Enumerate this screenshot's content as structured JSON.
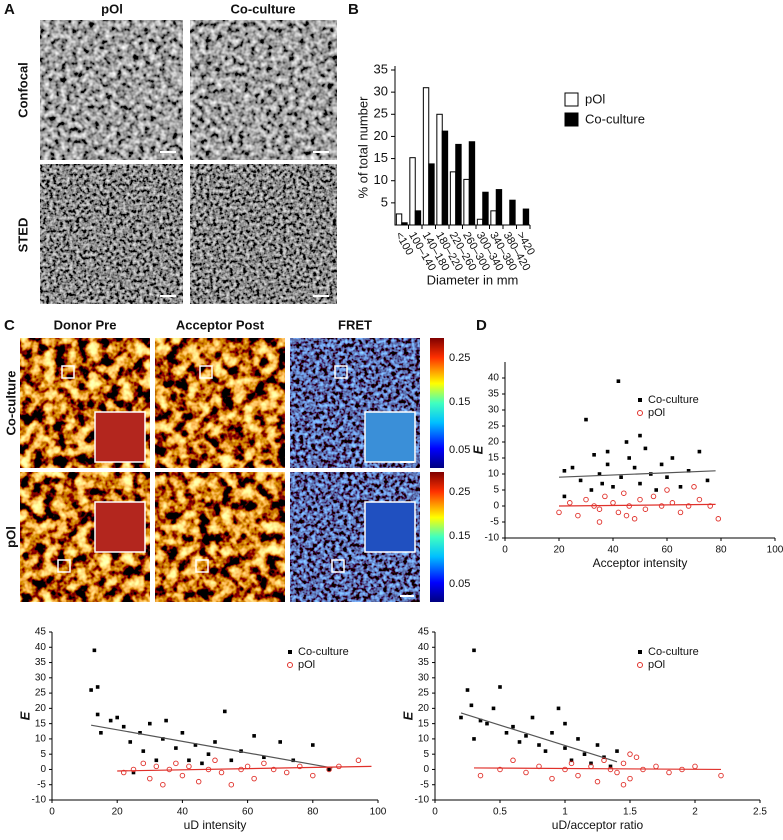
{
  "figure": {
    "panel_labels": [
      "A",
      "B",
      "C",
      "D"
    ],
    "panel_a": {
      "columns": [
        "pOl",
        "Co-culture"
      ],
      "rows": [
        "Confocal",
        "STED"
      ]
    },
    "panel_c": {
      "columns": [
        "Donor Pre",
        "Acceptor Post",
        "FRET"
      ],
      "rows": [
        "Co-culture",
        "pOl"
      ],
      "colorbar_ticks": [
        0.25,
        0.15,
        0.05
      ]
    }
  },
  "chart_data": [
    {
      "type": "bar",
      "x_label": "Diameter in mm",
      "y_label": "% of total number",
      "categories": [
        "<100",
        "100–140",
        "140–180",
        "180–220",
        "220–260",
        "260–300",
        "300–340",
        "340–380",
        "380–420",
        ">420"
      ],
      "series": [
        {
          "name": "pOl",
          "color": "#ffffff",
          "values": [
            2.5,
            15.2,
            31,
            25,
            12,
            10.3,
            1.3,
            3.2,
            0,
            0
          ]
        },
        {
          "name": "Co-culture",
          "color": "#000000",
          "values": [
            0.5,
            3.2,
            13.8,
            21.2,
            18.2,
            18.8,
            7.4,
            8,
            5.6,
            3.6
          ]
        }
      ],
      "ylim": [
        0,
        35
      ],
      "yticks": [
        5,
        10,
        15,
        20,
        25,
        30,
        35
      ]
    },
    {
      "type": "scatter",
      "x_label": "Acceptor intensity",
      "y_label": "E",
      "xlim": [
        0,
        100
      ],
      "xticks": [
        0,
        20,
        40,
        60,
        80,
        100
      ],
      "ylim": [
        -10,
        45
      ],
      "yticks": [
        -10,
        -5,
        0,
        5,
        10,
        15,
        20,
        25,
        30,
        35,
        40
      ],
      "series": [
        {
          "name": "Co-culture",
          "color": "#000000",
          "marker": "square",
          "x": [
            22,
            25,
            28,
            30,
            32,
            33,
            35,
            36,
            38,
            40,
            42,
            43,
            45,
            46,
            48,
            50,
            52,
            54,
            56,
            58,
            60,
            62,
            65,
            68,
            72,
            75,
            22,
            38,
            50
          ],
          "values": [
            11,
            12,
            8,
            27,
            5,
            16,
            10,
            7,
            13,
            6,
            39,
            9,
            20,
            15,
            12,
            7,
            18,
            10,
            5,
            13,
            9,
            15,
            6,
            11,
            17,
            8,
            3,
            17,
            22
          ],
          "fit": {
            "x": [
              20,
              78
            ],
            "values": [
              9,
              11
            ]
          }
        },
        {
          "name": "pOl",
          "color": "#e0302a",
          "marker": "circle",
          "x": [
            20,
            24,
            27,
            30,
            33,
            35,
            37,
            40,
            42,
            44,
            46,
            48,
            50,
            52,
            55,
            58,
            60,
            62,
            65,
            68,
            70,
            72,
            76,
            79,
            35,
            45
          ],
          "values": [
            -2,
            1,
            -3,
            2,
            0,
            -5,
            3,
            1,
            -2,
            4,
            0,
            -4,
            2,
            -1,
            3,
            0,
            5,
            1,
            -2,
            0,
            6,
            2,
            0,
            -4,
            -1,
            -3
          ],
          "fit": {
            "x": [
              20,
              78
            ],
            "values": [
              0,
              0.5
            ]
          }
        }
      ]
    },
    {
      "type": "scatter",
      "x_label": "uD intensity",
      "y_label": "E",
      "xlim": [
        0,
        100
      ],
      "xticks": [
        0,
        20,
        40,
        60,
        80,
        100
      ],
      "ylim": [
        -10,
        45
      ],
      "yticks": [
        -10,
        -5,
        0,
        5,
        10,
        15,
        20,
        25,
        30,
        35,
        40,
        45
      ],
      "series": [
        {
          "name": "Co-culture",
          "color": "#000000",
          "marker": "square",
          "x": [
            12,
            13,
            14,
            14,
            15,
            18,
            20,
            22,
            24,
            25,
            27,
            28,
            30,
            32,
            34,
            35,
            38,
            40,
            42,
            44,
            46,
            48,
            50,
            53,
            55,
            58,
            62,
            65,
            70,
            74,
            80,
            85
          ],
          "values": [
            26,
            39,
            27,
            18,
            12,
            16,
            17,
            14,
            9,
            -1,
            12,
            6,
            15,
            3,
            10,
            16,
            7,
            12,
            3,
            8,
            2,
            5,
            9,
            19,
            3,
            6,
            11,
            4,
            9,
            3,
            8,
            0
          ],
          "fit": {
            "x": [
              12,
              86
            ],
            "values": [
              14.5,
              0.5
            ]
          }
        },
        {
          "name": "pOl",
          "color": "#e0302a",
          "marker": "circle",
          "x": [
            22,
            25,
            28,
            30,
            32,
            34,
            36,
            38,
            40,
            42,
            45,
            48,
            50,
            52,
            55,
            58,
            60,
            62,
            65,
            68,
            72,
            76,
            80,
            85,
            88,
            94
          ],
          "values": [
            -1,
            0,
            2,
            -3,
            1,
            -5,
            0,
            2,
            -2,
            1,
            -4,
            0,
            3,
            -1,
            -5,
            0,
            1,
            -3,
            2,
            0,
            -1,
            1,
            -2,
            0,
            1,
            3
          ],
          "fit": {
            "x": [
              20,
              98
            ],
            "values": [
              -0.5,
              1
            ]
          }
        }
      ]
    },
    {
      "type": "scatter",
      "x_label": "uD/acceptor ratio",
      "y_label": "E",
      "xlim": [
        0,
        2.5
      ],
      "xticks": [
        0,
        0.5,
        1,
        1.5,
        2,
        2.5
      ],
      "ylim": [
        -10,
        45
      ],
      "yticks": [
        -10,
        -5,
        0,
        5,
        10,
        15,
        20,
        25,
        30,
        35,
        40,
        45
      ],
      "series": [
        {
          "name": "Co-culture",
          "color": "#000000",
          "marker": "square",
          "x": [
            0.2,
            0.25,
            0.28,
            0.3,
            0.35,
            0.4,
            0.45,
            0.5,
            0.55,
            0.6,
            0.65,
            0.7,
            0.75,
            0.8,
            0.85,
            0.9,
            0.95,
            1.0,
            1.05,
            1.1,
            1.15,
            1.2,
            1.25,
            1.3,
            1.35,
            1.4,
            0.3,
            1.0
          ],
          "values": [
            17,
            26,
            21,
            39,
            16,
            15,
            20,
            27,
            12,
            14,
            9,
            11,
            17,
            8,
            6,
            12,
            20,
            7,
            3,
            10,
            5,
            2,
            8,
            4,
            1,
            6,
            10,
            15
          ],
          "fit": {
            "x": [
              0.2,
              1.4
            ],
            "values": [
              18.5,
              2.5
            ]
          }
        },
        {
          "name": "pOl",
          "color": "#e0302a",
          "marker": "circle",
          "x": [
            0.35,
            0.5,
            0.6,
            0.7,
            0.8,
            0.9,
            1.0,
            1.05,
            1.1,
            1.2,
            1.25,
            1.3,
            1.35,
            1.4,
            1.45,
            1.5,
            1.55,
            1.6,
            1.7,
            1.8,
            1.9,
            2.0,
            2.2,
            1.45,
            1.5
          ],
          "values": [
            -2,
            0,
            3,
            -1,
            1,
            -3,
            0,
            2,
            -2,
            1,
            -4,
            3,
            0,
            -1,
            2,
            -3,
            4,
            0,
            1,
            -1,
            0,
            1,
            -2,
            -5,
            5
          ],
          "fit": {
            "x": [
              0.3,
              2.2
            ],
            "values": [
              0.5,
              0
            ]
          }
        }
      ]
    }
  ]
}
